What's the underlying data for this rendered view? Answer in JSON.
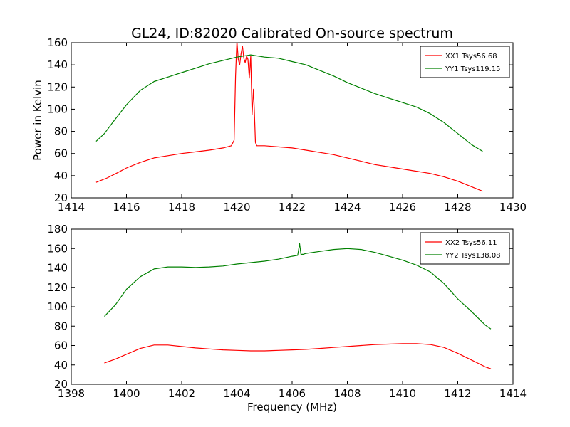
{
  "figure": {
    "title": "GL24, ID:82020 Calibrated On-source spectrum",
    "ylabel": "Power in Kelvin",
    "xlabel": "Frequency (MHz)"
  },
  "chart_data": [
    {
      "type": "line",
      "title": "GL24, ID:82020 Calibrated On-source spectrum",
      "ylabel": "Power in Kelvin",
      "xlabel": "",
      "xlim": [
        1414,
        1430
      ],
      "ylim": [
        20,
        160
      ],
      "xticks": [
        1414,
        1416,
        1418,
        1420,
        1422,
        1424,
        1426,
        1428,
        1430
      ],
      "yticks": [
        20,
        40,
        60,
        80,
        100,
        120,
        140,
        160
      ],
      "legend": "top-right",
      "grid": false,
      "series": [
        {
          "name": "XX1 Tsys56.68",
          "color": "#ff0000",
          "x": [
            1414.9,
            1415.3,
            1415.7,
            1416.0,
            1416.5,
            1417.0,
            1417.5,
            1418.0,
            1418.5,
            1419.0,
            1419.5,
            1419.8,
            1419.9,
            1419.95,
            1420.0,
            1420.05,
            1420.1,
            1420.15,
            1420.2,
            1420.25,
            1420.3,
            1420.35,
            1420.4,
            1420.45,
            1420.5,
            1420.55,
            1420.6,
            1420.63,
            1420.67,
            1420.72,
            1420.78,
            1421.0,
            1421.5,
            1422.0,
            1422.5,
            1423.0,
            1423.5,
            1424.0,
            1424.5,
            1425.0,
            1425.5,
            1426.0,
            1426.5,
            1427.0,
            1427.5,
            1428.0,
            1428.5,
            1428.9
          ],
          "y": [
            34,
            38,
            43,
            47,
            52,
            56,
            58,
            60,
            61.5,
            63,
            65,
            67,
            72,
            130,
            162,
            145,
            140,
            150,
            157,
            146,
            142,
            148,
            145,
            128,
            148,
            95,
            118,
            100,
            70,
            67,
            67,
            67,
            66,
            65,
            63,
            61,
            59,
            56,
            53,
            50,
            48,
            46,
            44,
            42,
            39,
            35,
            30,
            26
          ]
        },
        {
          "name": "YY1 Tsys119.15",
          "color": "#008000",
          "x": [
            1414.9,
            1415.2,
            1415.5,
            1416.0,
            1416.5,
            1417.0,
            1417.5,
            1418.0,
            1418.5,
            1419.0,
            1419.5,
            1420.0,
            1420.5,
            1421.0,
            1421.5,
            1422.0,
            1422.5,
            1423.0,
            1423.5,
            1424.0,
            1424.5,
            1425.0,
            1425.5,
            1426.0,
            1426.5,
            1427.0,
            1427.5,
            1428.0,
            1428.5,
            1428.9
          ],
          "y": [
            71,
            78,
            88,
            104,
            117,
            125,
            129,
            133,
            137,
            141,
            144,
            147,
            149,
            147,
            146,
            143,
            140,
            135,
            130,
            124,
            119,
            114,
            110,
            106,
            102,
            96,
            88,
            78,
            68,
            62
          ]
        }
      ]
    },
    {
      "type": "line",
      "title": "",
      "ylabel": "",
      "xlabel": "Frequency (MHz)",
      "xlim": [
        1398,
        1414
      ],
      "ylim": [
        20,
        180
      ],
      "xticks": [
        1398,
        1400,
        1402,
        1404,
        1406,
        1408,
        1410,
        1412,
        1414
      ],
      "yticks": [
        20,
        40,
        60,
        80,
        100,
        120,
        140,
        160,
        180
      ],
      "legend": "top-right",
      "grid": false,
      "series": [
        {
          "name": "XX2 Tsys56.11",
          "color": "#ff0000",
          "x": [
            1399.2,
            1399.6,
            1400.0,
            1400.5,
            1401.0,
            1401.5,
            1402.0,
            1402.5,
            1403.0,
            1403.5,
            1404.0,
            1404.5,
            1405.0,
            1405.5,
            1406.0,
            1406.5,
            1407.0,
            1407.5,
            1408.0,
            1408.5,
            1409.0,
            1409.5,
            1410.0,
            1410.5,
            1411.0,
            1411.5,
            1412.0,
            1412.5,
            1413.0,
            1413.2
          ],
          "y": [
            42,
            46,
            51,
            57,
            60.5,
            60.5,
            59,
            57.5,
            56.5,
            55.5,
            55,
            54.5,
            54.5,
            55,
            55.5,
            56,
            57,
            58,
            59,
            60,
            61,
            61.5,
            62,
            62,
            61,
            58,
            52,
            45,
            38,
            36
          ]
        },
        {
          "name": "YY2 Tsys138.08",
          "color": "#008000",
          "x": [
            1399.2,
            1399.6,
            1400.0,
            1400.5,
            1401.0,
            1401.5,
            1402.0,
            1402.5,
            1403.0,
            1403.5,
            1404.0,
            1404.5,
            1405.0,
            1405.5,
            1406.0,
            1406.2,
            1406.27,
            1406.32,
            1406.4,
            1406.5,
            1407.0,
            1407.5,
            1408.0,
            1408.5,
            1409.0,
            1409.5,
            1410.0,
            1410.5,
            1411.0,
            1411.5,
            1412.0,
            1412.5,
            1413.0,
            1413.2
          ],
          "y": [
            90,
            102,
            118,
            131,
            139,
            141,
            141,
            140.5,
            141,
            142,
            144,
            145.5,
            147,
            149,
            152,
            153,
            165,
            154,
            154,
            155,
            157,
            159,
            160,
            159,
            156,
            152,
            148,
            143,
            136,
            124,
            108,
            95,
            81,
            77
          ]
        }
      ]
    }
  ]
}
